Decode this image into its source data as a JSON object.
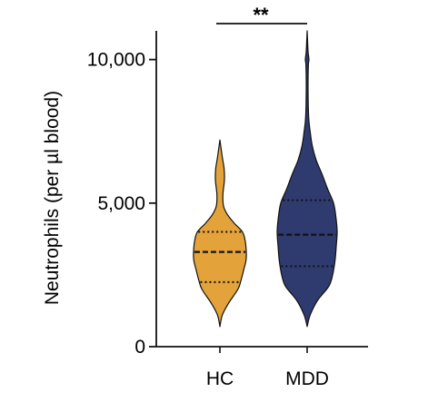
{
  "chart_data": {
    "type": "violin",
    "ylabel": "Neutrophils (per µl blood)",
    "categories": [
      "HC",
      "MDD"
    ],
    "ylim": [
      0,
      11000
    ],
    "yticks": [
      {
        "value": 0,
        "label": "0"
      },
      {
        "value": 5000,
        "label": "5,000"
      },
      {
        "value": 10000,
        "label": "10,000"
      }
    ],
    "series": [
      {
        "category": "HC",
        "color": "#E3A33A",
        "min": 700,
        "max": 7200,
        "quartiles": {
          "q1": 2250,
          "median": 3300,
          "q3": 4000
        },
        "density_profile": [
          [
            700,
            0.0
          ],
          [
            1100,
            0.08
          ],
          [
            1500,
            0.28
          ],
          [
            2000,
            0.6
          ],
          [
            2300,
            0.7
          ],
          [
            2700,
            0.8
          ],
          [
            3000,
            0.87
          ],
          [
            3300,
            0.88
          ],
          [
            3700,
            0.84
          ],
          [
            4000,
            0.75
          ],
          [
            4300,
            0.48
          ],
          [
            4600,
            0.25
          ],
          [
            4900,
            0.12
          ],
          [
            5300,
            0.1
          ],
          [
            5800,
            0.15
          ],
          [
            6200,
            0.14
          ],
          [
            6600,
            0.08
          ],
          [
            7200,
            0.0
          ]
        ]
      },
      {
        "category": "MDD",
        "color": "#2F3B6E",
        "min": 700,
        "max": 11000,
        "quartiles": {
          "q1": 2800,
          "median": 3900,
          "q3": 5100
        },
        "density_profile": [
          [
            700,
            0.0
          ],
          [
            1100,
            0.1
          ],
          [
            1600,
            0.34
          ],
          [
            2100,
            0.72
          ],
          [
            2500,
            0.85
          ],
          [
            3000,
            0.93
          ],
          [
            3500,
            0.97
          ],
          [
            4000,
            1.0
          ],
          [
            4500,
            0.96
          ],
          [
            5000,
            0.88
          ],
          [
            5500,
            0.68
          ],
          [
            6000,
            0.5
          ],
          [
            6500,
            0.3
          ],
          [
            7000,
            0.17
          ],
          [
            7500,
            0.1
          ],
          [
            8000,
            0.05
          ],
          [
            9000,
            0.03
          ],
          [
            9800,
            0.04
          ],
          [
            10000,
            0.06
          ],
          [
            10300,
            0.03
          ],
          [
            11000,
            0.0
          ]
        ]
      }
    ],
    "annotations": [
      {
        "type": "significance",
        "between": [
          "HC",
          "MDD"
        ],
        "label": "**"
      }
    ]
  }
}
